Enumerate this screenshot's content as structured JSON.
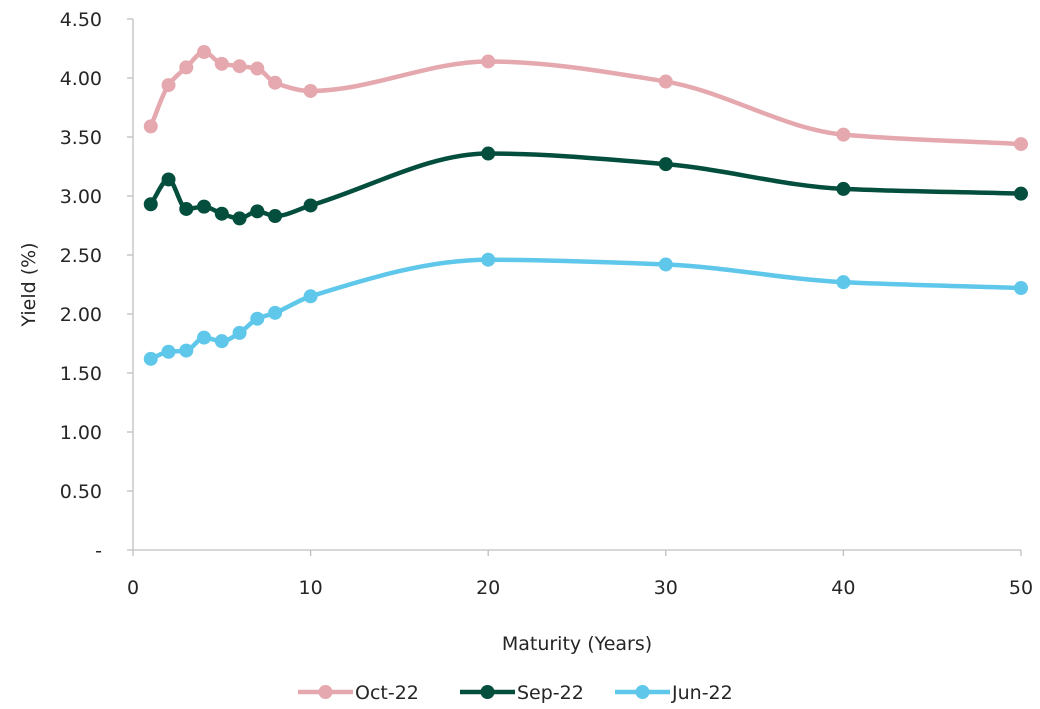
{
  "chart_data": {
    "type": "line",
    "title": "",
    "xlabel": "Maturity (Years)",
    "ylabel": "Yield (%)",
    "xlim": [
      0,
      50
    ],
    "ylim": [
      0,
      4.5
    ],
    "x_ticks": [
      0,
      10,
      20,
      30,
      40,
      50
    ],
    "x_tick_labels": [
      "0",
      "10",
      "20",
      "30",
      "40",
      "50"
    ],
    "y_ticks": [
      0,
      0.5,
      1.0,
      1.5,
      2.0,
      2.5,
      3.0,
      3.5,
      4.0,
      4.5
    ],
    "y_tick_labels": [
      "-",
      "0.50",
      "1.00",
      "1.50",
      "2.00",
      "2.50",
      "3.00",
      "3.50",
      "4.00",
      "4.50"
    ],
    "grid": false,
    "smooth": true,
    "legend_position": "bottom-center",
    "x": [
      1,
      2,
      3,
      4,
      5,
      6,
      7,
      8,
      10,
      20,
      30,
      40,
      50
    ],
    "series": [
      {
        "name": "Oct-22",
        "color": "#e4a8ae",
        "values": [
          3.59,
          3.94,
          4.09,
          4.22,
          4.12,
          4.1,
          4.08,
          3.96,
          3.89,
          4.14,
          3.97,
          3.52,
          3.44
        ]
      },
      {
        "name": "Sep-22",
        "color": "#044e3d",
        "values": [
          2.93,
          3.14,
          2.89,
          2.91,
          2.85,
          2.81,
          2.87,
          2.83,
          2.92,
          3.36,
          3.27,
          3.06,
          3.02
        ]
      },
      {
        "name": "Jun-22",
        "color": "#5ec7ea",
        "values": [
          1.62,
          1.68,
          1.69,
          1.8,
          1.77,
          1.84,
          1.96,
          2.01,
          2.15,
          2.46,
          2.42,
          2.27,
          2.22
        ]
      }
    ]
  }
}
